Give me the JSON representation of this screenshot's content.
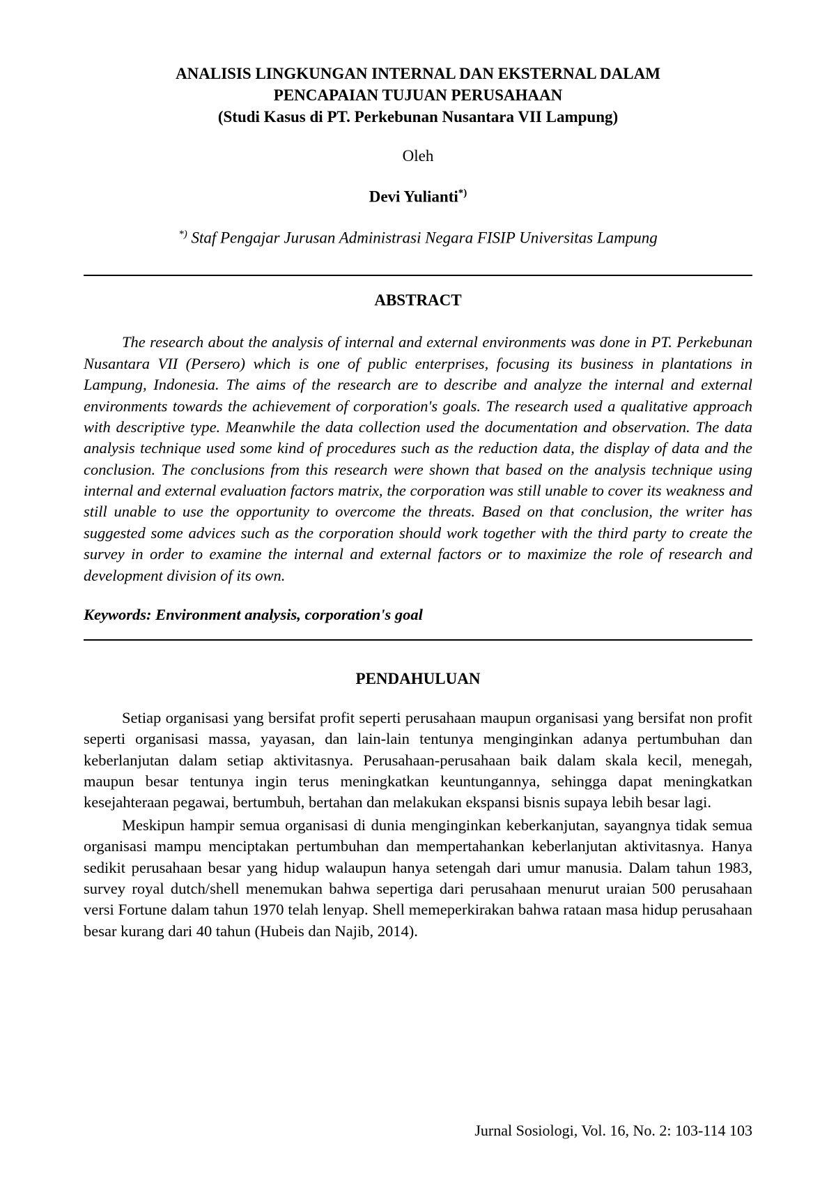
{
  "title_line1": "ANALISIS LINGKUNGAN INTERNAL DAN EKSTERNAL DALAM",
  "title_line2": "PENCAPAIAN TUJUAN PERUSAHAAN",
  "title_line3": "(Studi Kasus di PT. Perkebunan Nusantara VII Lampung)",
  "oleh": "Oleh",
  "author_name": "Devi Yulianti",
  "author_sup": "*)",
  "affiliation_sup": "*)",
  "affiliation_text": " Staf Pengajar Jurusan Administrasi Negara FISIP Universitas Lampung",
  "abstract_heading": "ABSTRACT",
  "abstract_body": "The research about the analysis of internal and external environments was done in PT. Perkebunan Nusantara VII (Persero) which is one of public enterprises, focusing its business in plantations in Lampung, Indonesia. The aims of the research are to describe and analyze the internal and external environments towards the achievement of corporation's goals. The research used a qualitative approach with descriptive type. Meanwhile the data collection used the documentation and observation. The data analysis technique used some kind of procedures such as the reduction data, the display of data and the conclusion. The conclusions from this research were shown that based on the analysis technique using internal and external evaluation factors matrix, the corporation was still unable to cover its weakness and still unable to use the opportunity to overcome the threats. Based on that conclusion, the writer has suggested some advices such as the corporation should work together with the third party to create the survey in order to examine the internal and external factors or to maximize the role of research and development division of its own.",
  "keywords": "Keywords: Environment analysis, corporation's goal",
  "section_heading": "PENDAHULUAN",
  "para1": "Setiap organisasi yang bersifat profit seperti perusahaan maupun organisasi yang bersifat non profit seperti organisasi massa, yayasan, dan lain-lain tentunya menginginkan adanya pertumbuhan dan keberlanjutan dalam setiap aktivitasnya.  Perusahaan-perusahaan baik dalam skala kecil, menegah, maupun besar tentunya ingin terus meningkatkan keuntungannya, sehingga dapat meningkatkan kesejahteraan pegawai, bertumbuh, bertahan dan melakukan ekspansi bisnis supaya lebih besar lagi.",
  "para2": "Meskipun hampir semua organisasi di dunia menginginkan keberkanjutan, sayangnya tidak semua organisasi mampu menciptakan pertumbuhan dan mempertahankan keberlanjutan aktivitasnya. Hanya sedikit perusahaan besar yang hidup walaupun hanya setengah dari umur manusia. Dalam tahun 1983, survey royal dutch/shell menemukan bahwa sepertiga dari perusahaan menurut uraian 500 perusahaan versi Fortune dalam tahun 1970 telah lenyap.  Shell memeperkirakan bahwa rataan masa hidup perusahaan besar kurang dari 40 tahun (Hubeis dan Najib, 2014).",
  "footer": "Jurnal Sosiologi, Vol. 16, No. 2: 103-114    103"
}
